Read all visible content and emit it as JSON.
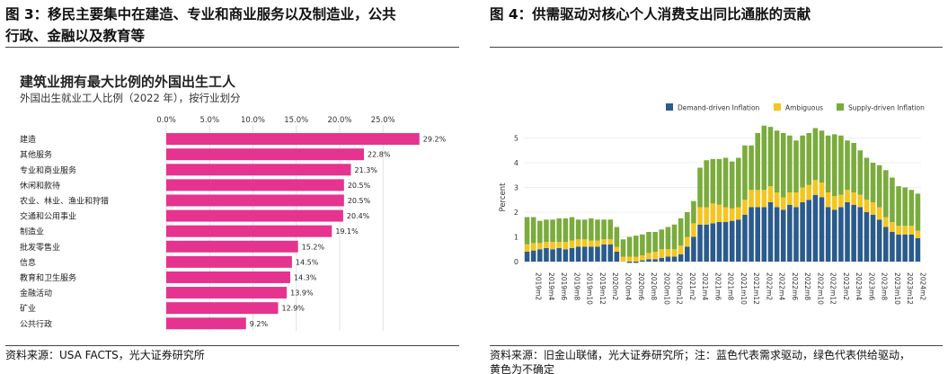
{
  "left": {
    "figure_title_line1": "图 3：移民主要集中在建造、专业和商业服务以及制造业，公共",
    "figure_title_line2": "行政、金融以及教育等",
    "source": "资料来源：USA FACTS，光大证券研究所"
  },
  "right": {
    "figure_title": "图 4：供需驱动对核心个人消费支出同比通胀的贡献",
    "source_line1": "资料来源：旧金山联储，光大证券研究所；注：蓝色代表需求驱动，绿色代表供给驱动，",
    "source_line2": "黄色为不确定"
  },
  "colors": {
    "bar_pink": "#e6338f",
    "demand": "#2b5b8c",
    "ambiguous": "#f5c520",
    "supply": "#7aab3c"
  },
  "chart_data": [
    {
      "type": "bar",
      "orientation": "horizontal",
      "title": "建筑业拥有最大比例的外国出生工人",
      "subtitle": "外国出生就业工人比例（2022 年），按行业划分",
      "categories": [
        "建造",
        "其他服务",
        "专业和商业服务",
        "休闲和款待",
        "农业、林业、渔业和狩猎",
        "交通和公用事业",
        "制造业",
        "批发零售业",
        "信息",
        "教育和卫生服务",
        "金融活动",
        "矿业",
        "公共行政"
      ],
      "values": [
        29.2,
        22.8,
        21.3,
        20.5,
        20.5,
        20.4,
        19.1,
        15.2,
        14.5,
        14.3,
        13.9,
        12.9,
        9.2
      ],
      "value_labels": [
        "29.2%",
        "22.8%",
        "21.3%",
        "20.5%",
        "20.5%",
        "20.4%",
        "19.1%",
        "15.2%",
        "14.5%",
        "14.3%",
        "13.9%",
        "12.9%",
        "9.2%"
      ],
      "x_ticks": [
        0,
        5,
        10,
        15,
        20,
        25
      ],
      "x_tick_labels": [
        "0.0%",
        "5.0%",
        "10.0%",
        "15.0%",
        "20.0%",
        "25.0%"
      ],
      "xlim": [
        0,
        30
      ],
      "axis_position": "top",
      "grid": true
    },
    {
      "type": "bar",
      "stacked": true,
      "legend_position": "top",
      "ylabel": "Percent",
      "ylim": [
        -0.2,
        5.7
      ],
      "y_ticks": [
        0,
        1,
        2,
        3,
        4,
        5
      ],
      "x_tick_labels": [
        "2019m2",
        "2019m4",
        "2019m6",
        "2019m8",
        "2019m10",
        "2019m12",
        "2020m2",
        "2020m4",
        "2020m6",
        "2020m8",
        "2020m10",
        "2020m12",
        "2021m2",
        "2021m4",
        "2021m6",
        "2021m8",
        "2021m10",
        "2021m12",
        "2022m2",
        "2022m4",
        "2022m6",
        "2022m8",
        "2022m10",
        "2022m12",
        "2023m2",
        "2023m4",
        "2023m6",
        "2023m8",
        "2023m10",
        "2023m12",
        "2024m2"
      ],
      "categories": [
        "2019m1",
        "2019m2",
        "2019m3",
        "2019m4",
        "2019m5",
        "2019m6",
        "2019m7",
        "2019m8",
        "2019m9",
        "2019m10",
        "2019m11",
        "2019m12",
        "2020m1",
        "2020m2",
        "2020m3",
        "2020m4",
        "2020m5",
        "2020m6",
        "2020m7",
        "2020m8",
        "2020m9",
        "2020m10",
        "2020m11",
        "2020m12",
        "2021m1",
        "2021m2",
        "2021m3",
        "2021m4",
        "2021m5",
        "2021m6",
        "2021m7",
        "2021m8",
        "2021m9",
        "2021m10",
        "2021m11",
        "2021m12",
        "2022m1",
        "2022m2",
        "2022m3",
        "2022m4",
        "2022m5",
        "2022m6",
        "2022m7",
        "2022m8",
        "2022m9",
        "2022m10",
        "2022m11",
        "2022m12",
        "2023m1",
        "2023m2",
        "2023m3",
        "2023m4",
        "2023m5",
        "2023m6",
        "2023m7",
        "2023m8",
        "2023m9",
        "2023m10",
        "2023m11",
        "2023m12",
        "2024m1",
        "2024m2"
      ],
      "series": [
        {
          "name": "Demand-driven Inflation",
          "color": "#2b5b8c",
          "values": [
            0.4,
            0.45,
            0.5,
            0.55,
            0.5,
            0.55,
            0.5,
            0.55,
            0.6,
            0.6,
            0.6,
            0.6,
            0.7,
            0.7,
            0.4,
            0.0,
            -0.05,
            -0.05,
            0.05,
            0.1,
            0.1,
            0.15,
            0.2,
            0.2,
            0.3,
            0.6,
            1.0,
            1.5,
            1.5,
            1.55,
            1.6,
            1.6,
            1.65,
            1.7,
            1.9,
            2.2,
            2.2,
            2.2,
            2.4,
            2.2,
            2.1,
            2.3,
            2.2,
            2.4,
            2.5,
            2.7,
            2.6,
            2.2,
            2.1,
            2.2,
            2.4,
            2.3,
            2.2,
            2.0,
            1.9,
            1.7,
            1.4,
            1.2,
            1.1,
            1.1,
            1.1,
            0.95
          ]
        },
        {
          "name": "Ambiguous",
          "color": "#f5c520",
          "values": [
            0.3,
            0.3,
            0.25,
            0.25,
            0.3,
            0.25,
            0.3,
            0.3,
            0.3,
            0.3,
            0.25,
            0.25,
            0.2,
            0.2,
            0.2,
            0.2,
            0.2,
            0.2,
            0.2,
            0.25,
            0.3,
            0.35,
            0.3,
            0.3,
            0.35,
            0.4,
            0.55,
            0.7,
            0.7,
            0.8,
            0.7,
            0.6,
            0.5,
            0.5,
            0.6,
            0.7,
            0.7,
            0.7,
            0.65,
            0.6,
            0.5,
            0.5,
            0.6,
            0.6,
            0.6,
            0.6,
            0.6,
            0.6,
            0.55,
            0.5,
            0.5,
            0.5,
            0.5,
            0.5,
            0.5,
            0.5,
            0.4,
            0.4,
            0.35,
            0.35,
            0.35,
            0.3
          ]
        },
        {
          "name": "Supply-driven Inflation",
          "color": "#7aab3c",
          "values": [
            1.1,
            1.05,
            0.9,
            0.9,
            0.9,
            0.95,
            0.95,
            0.95,
            0.8,
            0.8,
            0.9,
            0.85,
            0.8,
            0.8,
            0.8,
            0.7,
            0.8,
            0.85,
            0.85,
            0.85,
            0.8,
            0.8,
            0.9,
            1.0,
            1.1,
            1.0,
            0.9,
            1.6,
            1.9,
            1.8,
            1.85,
            2.0,
            1.9,
            2.0,
            2.2,
            1.8,
            2.3,
            2.6,
            2.4,
            2.5,
            2.6,
            2.3,
            2.1,
            2.1,
            2.1,
            2.1,
            2.1,
            2.3,
            2.5,
            2.4,
            2.0,
            2.0,
            1.8,
            1.7,
            1.6,
            1.7,
            1.9,
            1.8,
            1.6,
            1.55,
            1.45,
            1.5
          ]
        }
      ]
    }
  ]
}
